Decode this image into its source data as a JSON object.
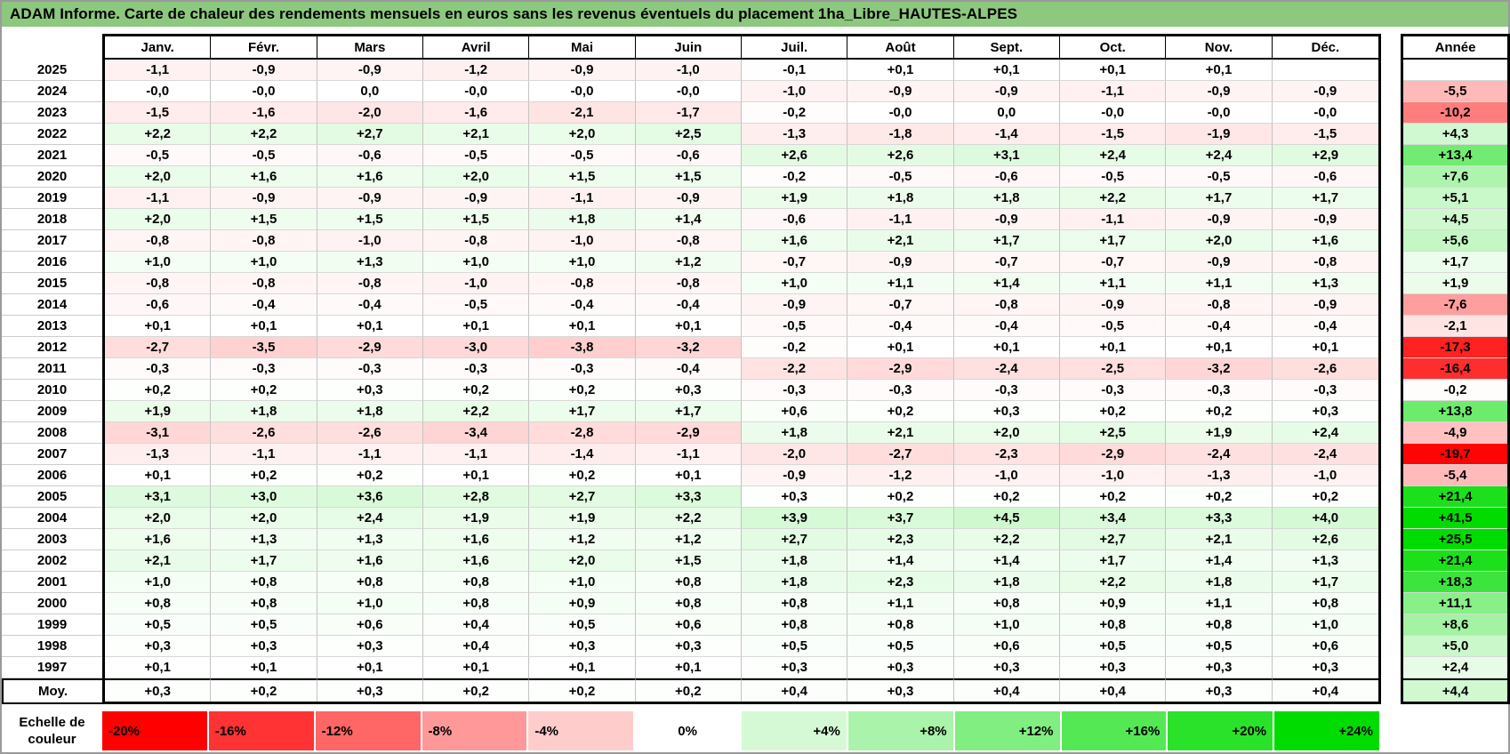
{
  "title": "ADAM Informe. Carte de chaleur des rendements mensuels en euros sans les revenus éventuels du placement 1ha_Libre_HAUTES-ALPES",
  "colors": {
    "title_bg": "#8cc87d",
    "grid_line": "#c3c3c3",
    "frame": "#000000",
    "negative_extreme": "#ff0000",
    "zero": "#ffffff",
    "positive_extreme": "#00dc00"
  },
  "chart_data": {
    "type": "heatmap",
    "title": "ADAM Informe. Carte de chaleur des rendements mensuels en euros sans les revenus éventuels du placement 1ha_Libre_HAUTES-ALPES",
    "columns": [
      "Janv.",
      "Févr.",
      "Mars",
      "Avril",
      "Mai",
      "Juin",
      "Juil.",
      "Août",
      "Sept.",
      "Oct.",
      "Nov.",
      "Déc."
    ],
    "annual_header": "Année",
    "rows": [
      {
        "year": "2025",
        "monthly": [
          "-1,1",
          "-0,9",
          "-0,9",
          "-1,2",
          "-0,9",
          "-1,0",
          "-0,1",
          "+0,1",
          "+0,1",
          "+0,1",
          "+0,1",
          null
        ],
        "annual": null
      },
      {
        "year": "2024",
        "monthly": [
          "-0,0",
          "-0,0",
          "0,0",
          "-0,0",
          "-0,0",
          "-0,0",
          "-1,0",
          "-0,9",
          "-0,9",
          "-1,1",
          "-0,9",
          "-0,9"
        ],
        "annual": "-5,5"
      },
      {
        "year": "2023",
        "monthly": [
          "-1,5",
          "-1,6",
          "-2,0",
          "-1,6",
          "-2,1",
          "-1,7",
          "-0,2",
          "-0,0",
          "0,0",
          "-0,0",
          "-0,0",
          "-0,0"
        ],
        "annual": "-10,2"
      },
      {
        "year": "2022",
        "monthly": [
          "+2,2",
          "+2,2",
          "+2,7",
          "+2,1",
          "+2,0",
          "+2,5",
          "-1,3",
          "-1,8",
          "-1,4",
          "-1,5",
          "-1,9",
          "-1,5"
        ],
        "annual": "+4,3"
      },
      {
        "year": "2021",
        "monthly": [
          "-0,5",
          "-0,5",
          "-0,6",
          "-0,5",
          "-0,5",
          "-0,6",
          "+2,6",
          "+2,6",
          "+3,1",
          "+2,4",
          "+2,4",
          "+2,9"
        ],
        "annual": "+13,4"
      },
      {
        "year": "2020",
        "monthly": [
          "+2,0",
          "+1,6",
          "+1,6",
          "+2,0",
          "+1,5",
          "+1,5",
          "-0,2",
          "-0,5",
          "-0,6",
          "-0,5",
          "-0,5",
          "-0,6"
        ],
        "annual": "+7,6"
      },
      {
        "year": "2019",
        "monthly": [
          "-1,1",
          "-0,9",
          "-0,9",
          "-0,9",
          "-1,1",
          "-0,9",
          "+1,9",
          "+1,8",
          "+1,8",
          "+2,2",
          "+1,7",
          "+1,7"
        ],
        "annual": "+5,1"
      },
      {
        "year": "2018",
        "monthly": [
          "+2,0",
          "+1,5",
          "+1,5",
          "+1,5",
          "+1,8",
          "+1,4",
          "-0,6",
          "-1,1",
          "-0,9",
          "-1,1",
          "-0,9",
          "-0,9"
        ],
        "annual": "+4,5"
      },
      {
        "year": "2017",
        "monthly": [
          "-0,8",
          "-0,8",
          "-1,0",
          "-0,8",
          "-1,0",
          "-0,8",
          "+1,6",
          "+2,1",
          "+1,7",
          "+1,7",
          "+2,0",
          "+1,6"
        ],
        "annual": "+5,6"
      },
      {
        "year": "2016",
        "monthly": [
          "+1,0",
          "+1,0",
          "+1,3",
          "+1,0",
          "+1,0",
          "+1,2",
          "-0,7",
          "-0,9",
          "-0,7",
          "-0,7",
          "-0,9",
          "-0,8"
        ],
        "annual": "+1,7"
      },
      {
        "year": "2015",
        "monthly": [
          "-0,8",
          "-0,8",
          "-0,8",
          "-1,0",
          "-0,8",
          "-0,8",
          "+1,0",
          "+1,1",
          "+1,4",
          "+1,1",
          "+1,1",
          "+1,3"
        ],
        "annual": "+1,9"
      },
      {
        "year": "2014",
        "monthly": [
          "-0,6",
          "-0,4",
          "-0,4",
          "-0,5",
          "-0,4",
          "-0,4",
          "-0,9",
          "-0,7",
          "-0,8",
          "-0,9",
          "-0,8",
          "-0,9"
        ],
        "annual": "-7,6"
      },
      {
        "year": "2013",
        "monthly": [
          "+0,1",
          "+0,1",
          "+0,1",
          "+0,1",
          "+0,1",
          "+0,1",
          "-0,5",
          "-0,4",
          "-0,4",
          "-0,5",
          "-0,4",
          "-0,4"
        ],
        "annual": "-2,1"
      },
      {
        "year": "2012",
        "monthly": [
          "-2,7",
          "-3,5",
          "-2,9",
          "-3,0",
          "-3,8",
          "-3,2",
          "-0,2",
          "+0,1",
          "+0,1",
          "+0,1",
          "+0,1",
          "+0,1"
        ],
        "annual": "-17,3"
      },
      {
        "year": "2011",
        "monthly": [
          "-0,3",
          "-0,3",
          "-0,3",
          "-0,3",
          "-0,3",
          "-0,4",
          "-2,2",
          "-2,9",
          "-2,4",
          "-2,5",
          "-3,2",
          "-2,6"
        ],
        "annual": "-16,4"
      },
      {
        "year": "2010",
        "monthly": [
          "+0,2",
          "+0,2",
          "+0,3",
          "+0,2",
          "+0,2",
          "+0,3",
          "-0,3",
          "-0,3",
          "-0,3",
          "-0,3",
          "-0,3",
          "-0,3"
        ],
        "annual": "-0,2"
      },
      {
        "year": "2009",
        "monthly": [
          "+1,9",
          "+1,8",
          "+1,8",
          "+2,2",
          "+1,7",
          "+1,7",
          "+0,6",
          "+0,2",
          "+0,3",
          "+0,2",
          "+0,2",
          "+0,3"
        ],
        "annual": "+13,8"
      },
      {
        "year": "2008",
        "monthly": [
          "-3,1",
          "-2,6",
          "-2,6",
          "-3,4",
          "-2,8",
          "-2,9",
          "+1,8",
          "+2,1",
          "+2,0",
          "+2,5",
          "+1,9",
          "+2,4"
        ],
        "annual": "-4,9"
      },
      {
        "year": "2007",
        "monthly": [
          "-1,3",
          "-1,1",
          "-1,1",
          "-1,1",
          "-1,4",
          "-1,1",
          "-2,0",
          "-2,7",
          "-2,3",
          "-2,9",
          "-2,4",
          "-2,4"
        ],
        "annual": "-19,7"
      },
      {
        "year": "2006",
        "monthly": [
          "+0,1",
          "+0,2",
          "+0,2",
          "+0,1",
          "+0,2",
          "+0,1",
          "-0,9",
          "-1,2",
          "-1,0",
          "-1,0",
          "-1,3",
          "-1,0"
        ],
        "annual": "-5,4"
      },
      {
        "year": "2005",
        "monthly": [
          "+3,1",
          "+3,0",
          "+3,6",
          "+2,8",
          "+2,7",
          "+3,3",
          "+0,3",
          "+0,2",
          "+0,2",
          "+0,2",
          "+0,2",
          "+0,2"
        ],
        "annual": "+21,4"
      },
      {
        "year": "2004",
        "monthly": [
          "+2,0",
          "+2,0",
          "+2,4",
          "+1,9",
          "+1,9",
          "+2,2",
          "+3,9",
          "+3,7",
          "+4,5",
          "+3,4",
          "+3,3",
          "+4,0"
        ],
        "annual": "+41,5"
      },
      {
        "year": "2003",
        "monthly": [
          "+1,6",
          "+1,3",
          "+1,3",
          "+1,6",
          "+1,2",
          "+1,2",
          "+2,7",
          "+2,3",
          "+2,2",
          "+2,7",
          "+2,1",
          "+2,6"
        ],
        "annual": "+25,5"
      },
      {
        "year": "2002",
        "monthly": [
          "+2,1",
          "+1,7",
          "+1,6",
          "+1,6",
          "+2,0",
          "+1,5",
          "+1,8",
          "+1,4",
          "+1,4",
          "+1,7",
          "+1,4",
          "+1,3"
        ],
        "annual": "+21,4"
      },
      {
        "year": "2001",
        "monthly": [
          "+1,0",
          "+0,8",
          "+0,8",
          "+0,8",
          "+1,0",
          "+0,8",
          "+1,8",
          "+2,3",
          "+1,8",
          "+2,2",
          "+1,8",
          "+1,7"
        ],
        "annual": "+18,3"
      },
      {
        "year": "2000",
        "monthly": [
          "+0,8",
          "+0,8",
          "+1,0",
          "+0,8",
          "+0,9",
          "+0,8",
          "+0,8",
          "+1,1",
          "+0,8",
          "+0,9",
          "+1,1",
          "+0,8"
        ],
        "annual": "+11,1"
      },
      {
        "year": "1999",
        "monthly": [
          "+0,5",
          "+0,5",
          "+0,6",
          "+0,4",
          "+0,5",
          "+0,6",
          "+0,8",
          "+0,8",
          "+1,0",
          "+0,8",
          "+0,8",
          "+1,0"
        ],
        "annual": "+8,6"
      },
      {
        "year": "1998",
        "monthly": [
          "+0,3",
          "+0,3",
          "+0,3",
          "+0,4",
          "+0,3",
          "+0,3",
          "+0,5",
          "+0,5",
          "+0,6",
          "+0,5",
          "+0,5",
          "+0,6"
        ],
        "annual": "+5,0"
      },
      {
        "year": "1997",
        "monthly": [
          "+0,1",
          "+0,1",
          "+0,1",
          "+0,1",
          "+0,1",
          "+0,1",
          "+0,3",
          "+0,3",
          "+0,3",
          "+0,3",
          "+0,3",
          "+0,3"
        ],
        "annual": "+2,4"
      }
    ],
    "average_row": {
      "label": "Moy.",
      "monthly": [
        "+0,3",
        "+0,2",
        "+0,3",
        "+0,2",
        "+0,2",
        "+0,2",
        "+0,4",
        "+0,3",
        "+0,4",
        "+0,4",
        "+0,3",
        "+0,4"
      ],
      "annual": "+4,4"
    },
    "color_scale": {
      "label_lines": [
        "Echelle de",
        "couleur"
      ],
      "ticks": [
        "-20%",
        "-16%",
        "-12%",
        "-8%",
        "-4%",
        "0%",
        "+4%",
        "+8%",
        "+12%",
        "+16%",
        "+20%",
        "+24%"
      ],
      "tick_values": [
        -20,
        -16,
        -12,
        -8,
        -4,
        0,
        4,
        8,
        12,
        16,
        20,
        24
      ],
      "domain": [
        -20,
        24
      ],
      "negative_extreme_color": "#ff0000",
      "zero_color": "#ffffff",
      "positive_extreme_color": "#00dc00",
      "legend_position": "bottom"
    }
  }
}
